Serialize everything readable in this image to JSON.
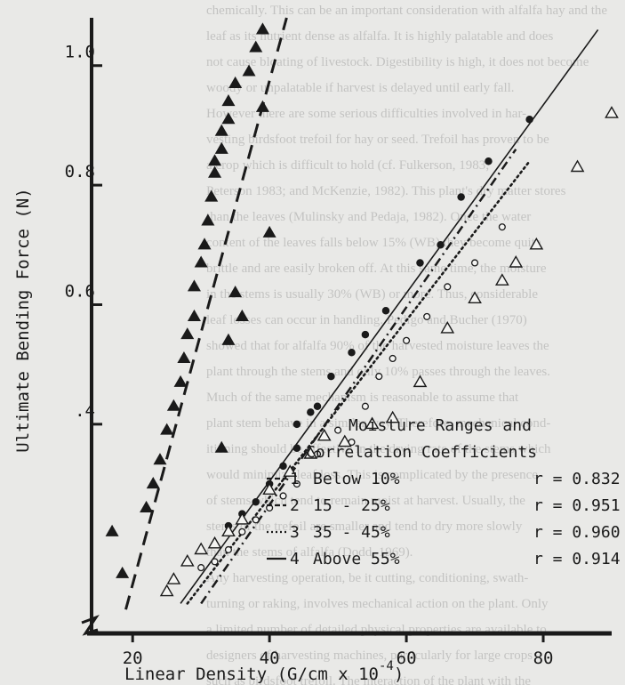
{
  "background_text_color": "#000000",
  "background_text": [
    "chemically. This can be an important consideration with alfalfa hay and the",
    "leaf as its nutrient dense as alfalfa. It is highly palatable and does",
    "not cause bloating of livestock. Digestibility is high, it does not become",
    "woody or unpalatable if harvest is delayed until early fall.",
    "However there are some serious difficulties involved in har-",
    "vesting birdsfoot trefoil for hay or seed. Trefoil has proven to be",
    "a crop which is difficult to hold (cf. Fulkerson, 1983;",
    "Peterson 1983; and McKenzie, 1982). This plant's dry matter stores",
    "than the leaves (Mulinsky and Pedaja, 1982). Once the water",
    "content of the leaves falls below 15% (WB) they become quite",
    "brittle and are easily broken off. At this same time, the moisture",
    "in the stems is usually 30% (WB) or more. Thus, considerable",
    "leaf losses can occur in handling. Pedigo and Bucher (1970)",
    "showed that for alfalfa 90% of the harvested moisture leaves the",
    "plant through the stems and only 10% passes through the leaves.",
    "Much of the same mechanism is reasonable to assume that",
    "plant stem behave in a similar way. Therefore, mechanical cond-",
    "itioning should be effective in the drying rate of the stems which",
    "would minimize leaf loss. This is complicated by the presence",
    "of stems which tend to remain moist at harvest. Usually, the",
    "stems of the trefoil are smaller and tend to dry more slowly",
    "than the stems of alfalfa (Dodd, 1969).",
    "Any harvesting operation, be it cutting, conditioning, swath-",
    "turning or raking, involves mechanical action on the plant. Only",
    "a limited number of detailed physical properties are available to",
    "designers of harvesting machines, particularly for large crops",
    "such as birdsfoot trefoil. The interaction of the plant with the"
  ],
  "chart_data": {
    "type": "scatter",
    "xlabel": "Linear Density (G/cm x 10",
    "xlabel_exponent": "-4",
    "ylabel": "Ultimate Bending Force (N)",
    "xlim": [
      14,
      90
    ],
    "ylim": [
      0.05,
      1.08
    ],
    "x_ticks": [
      20,
      40,
      60,
      80
    ],
    "y_ticks": [
      0.4,
      0.6,
      0.8,
      1.0
    ],
    "y_tick_labels": [
      ".4",
      "0.6",
      "0.8",
      "1.0"
    ],
    "grid": false,
    "legend": {
      "position": "lower-right",
      "title_lines": [
        "Moisture Ranges and",
        "Correlation Coefficients"
      ],
      "entries": [
        {
          "number": "1",
          "marker": "triangle-filled",
          "line": "dash",
          "label": "Below 10%",
          "r": "r = 0.832"
        },
        {
          "number": "2",
          "marker": "circle-filled",
          "line": "dash-dot",
          "label": "15 - 25%",
          "r": "r = 0.951"
        },
        {
          "number": "3",
          "marker": "circle-open",
          "line": "dot",
          "label": "35 - 45%",
          "r": "r = 0.960"
        },
        {
          "number": "4",
          "marker": "triangle-open",
          "line": "solid",
          "label": "Above 55%",
          "r": "r = 0.914"
        }
      ]
    },
    "series": [
      {
        "name": "1 Below 10%",
        "marker": "triangle-filled",
        "line_style": "dash",
        "fit": [
          [
            19.0,
            0.09
          ],
          [
            42.5,
            1.08
          ]
        ],
        "points": [
          [
            17,
            0.22
          ],
          [
            18.5,
            0.15
          ],
          [
            22,
            0.26
          ],
          [
            23,
            0.3
          ],
          [
            24,
            0.34
          ],
          [
            25,
            0.39
          ],
          [
            26,
            0.43
          ],
          [
            27,
            0.47
          ],
          [
            27.5,
            0.51
          ],
          [
            28,
            0.55
          ],
          [
            29,
            0.58
          ],
          [
            29,
            0.63
          ],
          [
            30,
            0.67
          ],
          [
            30.5,
            0.7
          ],
          [
            31,
            0.74
          ],
          [
            31.5,
            0.78
          ],
          [
            32,
            0.82
          ],
          [
            32,
            0.84
          ],
          [
            33,
            0.86
          ],
          [
            33,
            0.89
          ],
          [
            34,
            0.91
          ],
          [
            34,
            0.94
          ],
          [
            35,
            0.97
          ],
          [
            37,
            0.99
          ],
          [
            38,
            1.03
          ],
          [
            39,
            1.06
          ],
          [
            35,
            0.62
          ],
          [
            36,
            0.58
          ],
          [
            34,
            0.54
          ],
          [
            33,
            0.36
          ],
          [
            40,
            0.72
          ],
          [
            39,
            0.93
          ]
        ]
      },
      {
        "name": "2 15 - 25%",
        "marker": "circle-filled",
        "line_style": "dash-dot",
        "fit": [
          [
            30.0,
            0.1
          ],
          [
            76.0,
            0.86
          ]
        ],
        "points": [
          [
            34,
            0.23
          ],
          [
            36,
            0.25
          ],
          [
            38,
            0.27
          ],
          [
            40,
            0.3
          ],
          [
            42,
            0.33
          ],
          [
            44,
            0.36
          ],
          [
            44,
            0.4
          ],
          [
            46,
            0.42
          ],
          [
            47,
            0.43
          ],
          [
            49,
            0.48
          ],
          [
            52,
            0.52
          ],
          [
            54,
            0.55
          ],
          [
            57,
            0.59
          ],
          [
            62,
            0.67
          ],
          [
            65,
            0.7
          ],
          [
            68,
            0.78
          ],
          [
            72,
            0.84
          ],
          [
            78,
            0.91
          ]
        ]
      },
      {
        "name": "3 35 - 45%",
        "marker": "circle-open",
        "line_style": "dot",
        "fit": [
          [
            28.0,
            0.1
          ],
          [
            78.0,
            0.84
          ]
        ],
        "points": [
          [
            30,
            0.16
          ],
          [
            32,
            0.17
          ],
          [
            34,
            0.19
          ],
          [
            36,
            0.22
          ],
          [
            38,
            0.24
          ],
          [
            40,
            0.26
          ],
          [
            42,
            0.28
          ],
          [
            44,
            0.3
          ],
          [
            47,
            0.35
          ],
          [
            50,
            0.39
          ],
          [
            52,
            0.37
          ],
          [
            54,
            0.43
          ],
          [
            56,
            0.48
          ],
          [
            58,
            0.51
          ],
          [
            60,
            0.54
          ],
          [
            63,
            0.58
          ],
          [
            66,
            0.63
          ],
          [
            70,
            0.67
          ],
          [
            74,
            0.73
          ]
        ]
      },
      {
        "name": "4 Above 55%",
        "marker": "triangle-open",
        "line_style": "solid",
        "fit": [
          [
            27.0,
            0.1
          ],
          [
            88.0,
            1.06
          ]
        ],
        "points": [
          [
            25,
            0.12
          ],
          [
            26,
            0.14
          ],
          [
            28,
            0.17
          ],
          [
            30,
            0.19
          ],
          [
            32,
            0.2
          ],
          [
            34,
            0.22
          ],
          [
            36,
            0.24
          ],
          [
            40,
            0.29
          ],
          [
            43,
            0.32
          ],
          [
            46,
            0.35
          ],
          [
            48,
            0.38
          ],
          [
            51,
            0.37
          ],
          [
            55,
            0.4
          ],
          [
            58,
            0.41
          ],
          [
            62,
            0.47
          ],
          [
            66,
            0.56
          ],
          [
            70,
            0.61
          ],
          [
            74,
            0.64
          ],
          [
            76,
            0.67
          ],
          [
            79,
            0.7
          ],
          [
            85,
            0.83
          ],
          [
            90,
            0.92
          ]
        ]
      }
    ]
  }
}
